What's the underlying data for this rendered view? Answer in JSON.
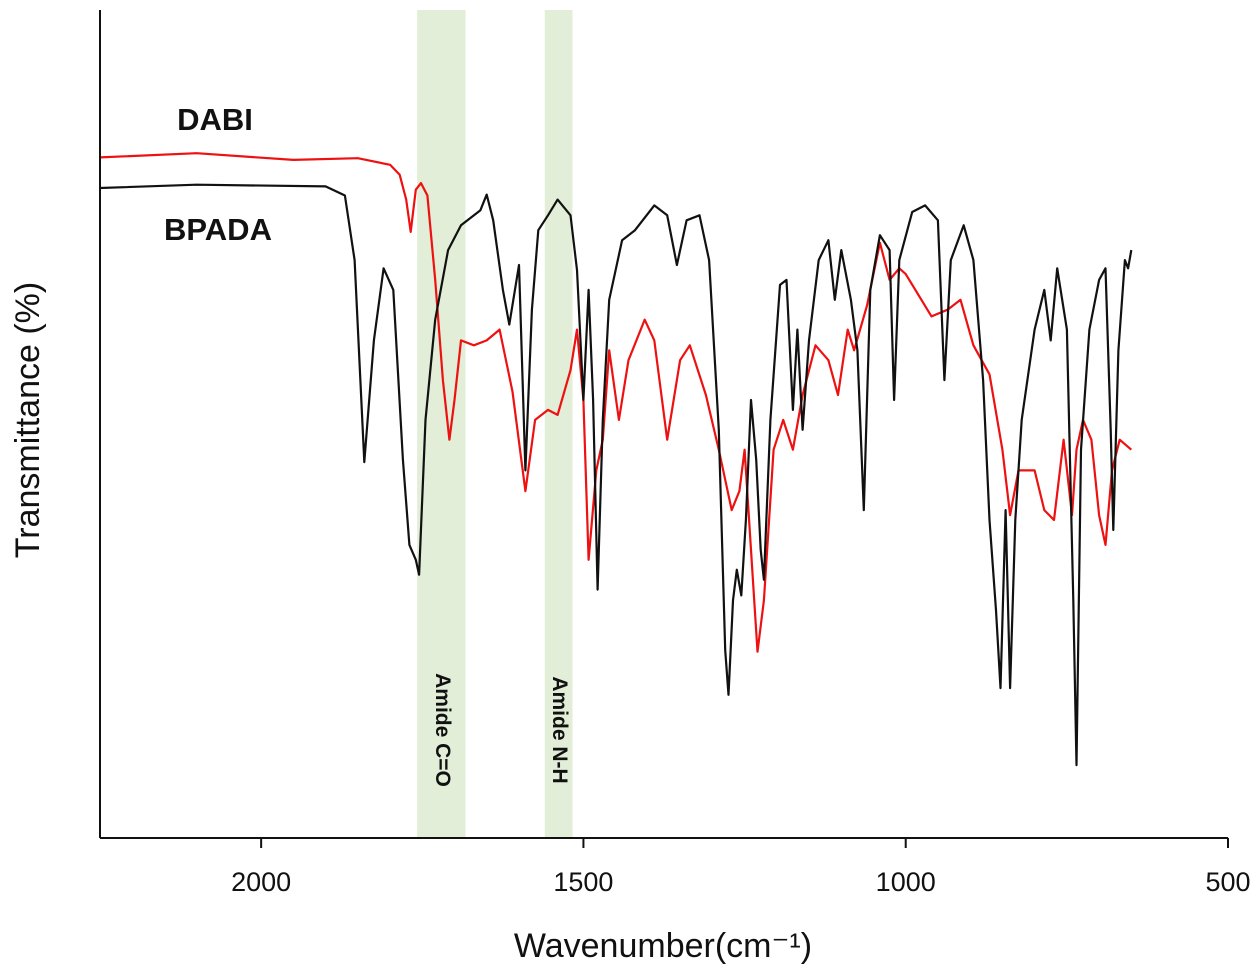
{
  "chart_data": {
    "type": "line",
    "x_label": "Wavenumber(cm⁻¹)",
    "y_label": "Transmittance (%)",
    "xlim": [
      2250,
      500
    ],
    "ylim": [
      0,
      100
    ],
    "xticks": [
      2000,
      1500,
      1000,
      500
    ],
    "annotations": [
      {
        "label": "Amide C=O",
        "range": [
          1758,
          1683
        ],
        "color": "#e2eed8"
      },
      {
        "label": "Amide N-H",
        "range": [
          1560,
          1517
        ],
        "color": "#e2eed8"
      }
    ],
    "series": [
      {
        "name": "DABI",
        "color": "#ee1111",
        "x": [
          2250,
          2100,
          1950,
          1850,
          1800,
          1785,
          1775,
          1768,
          1760,
          1752,
          1742,
          1730,
          1718,
          1708,
          1700,
          1690,
          1670,
          1650,
          1630,
          1610,
          1590,
          1575,
          1555,
          1540,
          1520,
          1510,
          1500,
          1492,
          1480,
          1470,
          1460,
          1445,
          1430,
          1405,
          1390,
          1370,
          1350,
          1335,
          1310,
          1290,
          1270,
          1258,
          1250,
          1240,
          1230,
          1220,
          1205,
          1190,
          1175,
          1160,
          1140,
          1120,
          1105,
          1090,
          1080,
          1060,
          1040,
          1025,
          1010,
          1000,
          985,
          960,
          935,
          915,
          895,
          870,
          850,
          838,
          825,
          800,
          785,
          770,
          755,
          742,
          735,
          725,
          712,
          700,
          690,
          680,
          668,
          650
        ],
        "values": [
          82.2,
          82.7,
          81.9,
          82.1,
          81.3,
          80.1,
          77.1,
          73.2,
          78.3,
          79.1,
          77.6,
          67.4,
          55.3,
          48.1,
          52.9,
          60.1,
          59.5,
          60.1,
          61.4,
          53.9,
          41.9,
          50.5,
          51.7,
          51.1,
          56.5,
          61.4,
          52.9,
          33.6,
          44.4,
          48.1,
          58.9,
          50.5,
          57.7,
          62.6,
          60.1,
          48.1,
          57.7,
          59.5,
          53.5,
          46.9,
          39.6,
          41.9,
          46.9,
          34.8,
          22.5,
          28.7,
          46.9,
          50.5,
          46.9,
          53.5,
          59.5,
          57.7,
          53.5,
          61.4,
          58.9,
          64.3,
          71.9,
          67.4,
          68.8,
          68.1,
          66.2,
          63.0,
          63.8,
          65.0,
          59.5,
          56.0,
          46.9,
          39.0,
          44.4,
          44.4,
          39.6,
          38.4,
          48.1,
          39.0,
          46.9,
          50.5,
          48.1,
          39.0,
          35.4,
          44.4,
          48.1,
          46.9
        ]
      },
      {
        "name": "BPADA",
        "color": "#111111",
        "x": [
          2250,
          2100,
          1900,
          1870,
          1855,
          1840,
          1825,
          1810,
          1795,
          1780,
          1770,
          1760,
          1755,
          1745,
          1730,
          1710,
          1690,
          1660,
          1650,
          1640,
          1625,
          1615,
          1600,
          1590,
          1580,
          1570,
          1555,
          1540,
          1520,
          1510,
          1500,
          1492,
          1485,
          1478,
          1470,
          1460,
          1440,
          1420,
          1390,
          1370,
          1355,
          1340,
          1320,
          1305,
          1290,
          1280,
          1275,
          1268,
          1262,
          1255,
          1248,
          1240,
          1232,
          1225,
          1220,
          1210,
          1195,
          1185,
          1175,
          1168,
          1160,
          1150,
          1135,
          1120,
          1110,
          1100,
          1085,
          1075,
          1065,
          1055,
          1040,
          1025,
          1018,
          1010,
          990,
          970,
          950,
          940,
          930,
          910,
          895,
          880,
          870,
          860,
          853,
          845,
          838,
          830,
          820,
          800,
          785,
          775,
          765,
          750,
          740,
          735,
          728,
          715,
          700,
          690,
          682,
          678,
          670,
          660,
          655,
          650
        ],
        "values": [
          78.5,
          78.9,
          78.7,
          77.6,
          69.8,
          45.4,
          60.1,
          68.8,
          66.2,
          45.7,
          35.4,
          33.6,
          31.8,
          50.5,
          62.6,
          71.0,
          74.0,
          75.8,
          77.7,
          74.6,
          66.2,
          62.0,
          69.2,
          44.4,
          63.8,
          73.4,
          75.2,
          77.1,
          75.2,
          68.6,
          52.9,
          66.2,
          52.9,
          30.0,
          50.5,
          65.0,
          72.2,
          73.4,
          76.4,
          75.2,
          69.2,
          74.6,
          75.2,
          69.8,
          49.3,
          22.7,
          17.3,
          28.7,
          32.4,
          29.3,
          38.4,
          52.9,
          45.7,
          34.8,
          31.2,
          50.5,
          66.8,
          67.4,
          51.7,
          61.4,
          49.3,
          60.1,
          69.8,
          72.2,
          65.0,
          71.0,
          65.0,
          58.9,
          39.6,
          66.2,
          72.8,
          71.0,
          52.9,
          69.8,
          75.6,
          76.4,
          74.6,
          55.3,
          69.8,
          74.0,
          69.8,
          55.3,
          38.4,
          27.5,
          18.1,
          39.6,
          18.1,
          38.4,
          50.5,
          61.4,
          66.2,
          60.1,
          68.8,
          61.4,
          28.7,
          8.8,
          46.9,
          61.4,
          67.4,
          68.8,
          49.3,
          37.2,
          58.9,
          69.8,
          68.8,
          71.0
        ]
      }
    ]
  }
}
